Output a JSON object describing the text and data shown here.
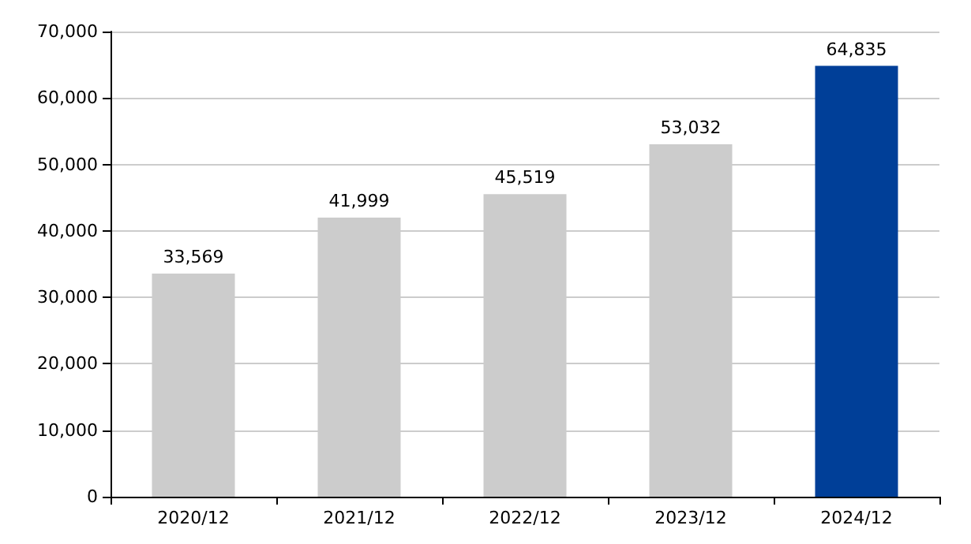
{
  "chart_data": {
    "type": "bar",
    "categories": [
      "2020/12",
      "2021/12",
      "2022/12",
      "2023/12",
      "2024/12"
    ],
    "values": [
      33569,
      41999,
      45519,
      53032,
      64835
    ],
    "value_labels": [
      "33,569",
      "41,999",
      "45,519",
      "53,032",
      "64,835"
    ],
    "colors": [
      "#cccccc",
      "#cccccc",
      "#cccccc",
      "#cccccc",
      "#003f98"
    ],
    "ylim": [
      0,
      70000
    ],
    "yticks": [
      0,
      {
        "value": 10000,
        "label": "10,000"
      },
      {
        "value": 20000,
        "label": "20,000"
      },
      {
        "value": 30000,
        "label": "30,000"
      },
      {
        "value": 40000,
        "label": "40,000"
      },
      {
        "value": 50000,
        "label": "50,000"
      },
      {
        "value": 60000,
        "label": "60,000"
      },
      {
        "value": 70000,
        "label": "70,000"
      }
    ],
    "grid": "y"
  }
}
